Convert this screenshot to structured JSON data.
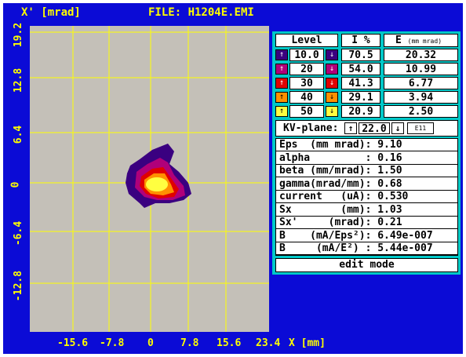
{
  "header": {
    "y_axis_label": "X' [mrad]",
    "file_label": "FILE: H1204E.EMI"
  },
  "plot": {
    "x_label": "X [mm]",
    "x_ticks": [
      "-15.6",
      "-7.8",
      "0",
      "7.8",
      "15.6",
      "23.4"
    ],
    "y_ticks": [
      "19.2",
      "12.8",
      "6.4",
      "0",
      "-6.4",
      "-12.8"
    ]
  },
  "levels_table": {
    "headers": {
      "level": "Level",
      "intensity": "I %",
      "emittance": "E",
      "emittance_unit": "(mm mrad)"
    },
    "rows": [
      {
        "level": "10.0",
        "i": "70.5",
        "e": "20.32",
        "color": "#3a0080"
      },
      {
        "level": "20",
        "i": "54.0",
        "e": "10.99",
        "color": "#b0007a"
      },
      {
        "level": "30",
        "i": "41.3",
        "e": "6.77",
        "color": "#e00000"
      },
      {
        "level": "40",
        "i": "29.1",
        "e": "3.94",
        "color": "#ff9000"
      },
      {
        "level": "50",
        "i": "20.9",
        "e": "2.50",
        "color": "#ffff40"
      }
    ]
  },
  "kv": {
    "label": "KV-plane:",
    "value": "22.0",
    "up_icon": "↑",
    "down_icon": "↓",
    "mode": "E11"
  },
  "params": [
    "Eps  (mm mrad): 9.10",
    "alpha         : 0.16",
    "beta (mm/mrad): 1.50",
    "gamma(mrad/mm): 0.68",
    "current   (uA): 0.530",
    "Sx        (mm): 1.03",
    "Sx'     (mrad): 0.21",
    "B    (mA/Eps²): 6.49e-007",
    "B     (mA/E²) : 5.44e-007"
  ],
  "edit_mode": "edit mode",
  "colors": {
    "background": "#0b0bd6",
    "plot_bg": "#c4c0b8",
    "grid": "#ffff00",
    "panel": "#00c8c8"
  }
}
